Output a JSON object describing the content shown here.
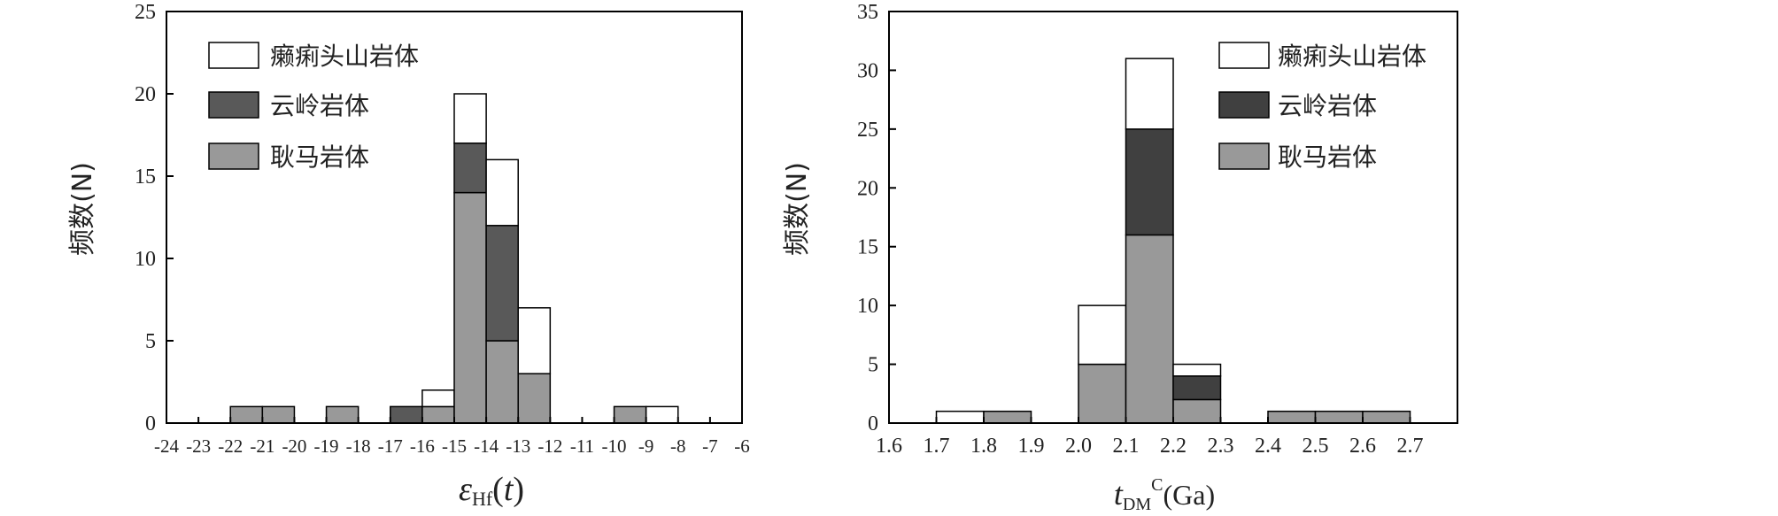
{
  "chart_data": [
    {
      "type": "bar",
      "stacked": true,
      "title": "",
      "xlabel": "εHf(t)",
      "xlabel_parts": {
        "main": "ε",
        "sub": "Hf",
        "paren_open": "(",
        "var": "t",
        "paren_close": ")"
      },
      "ylabel": "频数(N)",
      "ylim": [
        0,
        25
      ],
      "yticks": [
        "0",
        "5",
        "10",
        "15",
        "20",
        "25"
      ],
      "xlim": [
        -24,
        -6
      ],
      "xticks": [
        "-24",
        "-23",
        "-22",
        "-21",
        "-20",
        "-19",
        "-18",
        "-17",
        "-16",
        "-15",
        "-14",
        "-13",
        "-12",
        "-11",
        "-10",
        "-9",
        "-8",
        "-7",
        "-6"
      ],
      "grid": false,
      "legend_position": "top-left",
      "bins": [
        -22,
        -21,
        -20,
        -19,
        -18,
        -17,
        -16,
        -15,
        -14,
        -13,
        -12,
        -11,
        -10,
        -9
      ],
      "bin_width": 1,
      "series": [
        {
          "name": "耿马岩体",
          "color": "#999999",
          "values": [
            1,
            1,
            0,
            1,
            0,
            0,
            1,
            14,
            5,
            3,
            0,
            0,
            1,
            0
          ]
        },
        {
          "name": "云岭岩体",
          "color": "#595959",
          "values": [
            0,
            0,
            0,
            0,
            0,
            1,
            0,
            3,
            7,
            0,
            0,
            0,
            0,
            0
          ]
        },
        {
          "name": "癞痢头山岩体",
          "color": "#ffffff",
          "values": [
            0,
            0,
            0,
            0,
            0,
            0,
            1,
            3,
            4,
            4,
            0,
            0,
            0,
            1
          ]
        }
      ],
      "legend": [
        {
          "name": "癞痢头山岩体",
          "color": "#ffffff"
        },
        {
          "name": "云岭岩体",
          "color": "#595959"
        },
        {
          "name": "耿马岩体",
          "color": "#999999"
        }
      ]
    },
    {
      "type": "bar",
      "stacked": true,
      "title": "",
      "xlabel": "tDMC(Ga)",
      "xlabel_parts": {
        "main": "t",
        "sub": "DM",
        "sup": "C",
        "unit": "(Ga)"
      },
      "ylabel": "频数(N)",
      "ylim": [
        0,
        35
      ],
      "yticks": [
        "0",
        "5",
        "10",
        "15",
        "20",
        "25",
        "30",
        "35"
      ],
      "xlim": [
        1.6,
        2.8
      ],
      "xticks": [
        "1.6",
        "1.7",
        "1.8",
        "1.9",
        "2.0",
        "2.1",
        "2.2",
        "2.3",
        "2.4",
        "2.5",
        "2.6",
        "2.7"
      ],
      "grid": false,
      "legend_position": "top-right",
      "bins": [
        1.7,
        1.8,
        2.0,
        2.1,
        2.2,
        2.4,
        2.5,
        2.6
      ],
      "bin_width": 0.1,
      "series": [
        {
          "name": "耿马岩体",
          "color": "#999999",
          "values": [
            0,
            1,
            5,
            16,
            2,
            1,
            1,
            1
          ]
        },
        {
          "name": "云岭岩体",
          "color": "#404040",
          "values": [
            0,
            0,
            0,
            9,
            2,
            0,
            0,
            0
          ]
        },
        {
          "name": "癞痢头山岩体",
          "color": "#ffffff",
          "values": [
            1,
            0,
            5,
            6,
            1,
            0,
            0,
            0
          ]
        }
      ],
      "legend": [
        {
          "name": "癞痢头山岩体",
          "color": "#ffffff"
        },
        {
          "name": "云岭岩体",
          "color": "#404040"
        },
        {
          "name": "耿马岩体",
          "color": "#999999"
        }
      ]
    }
  ]
}
